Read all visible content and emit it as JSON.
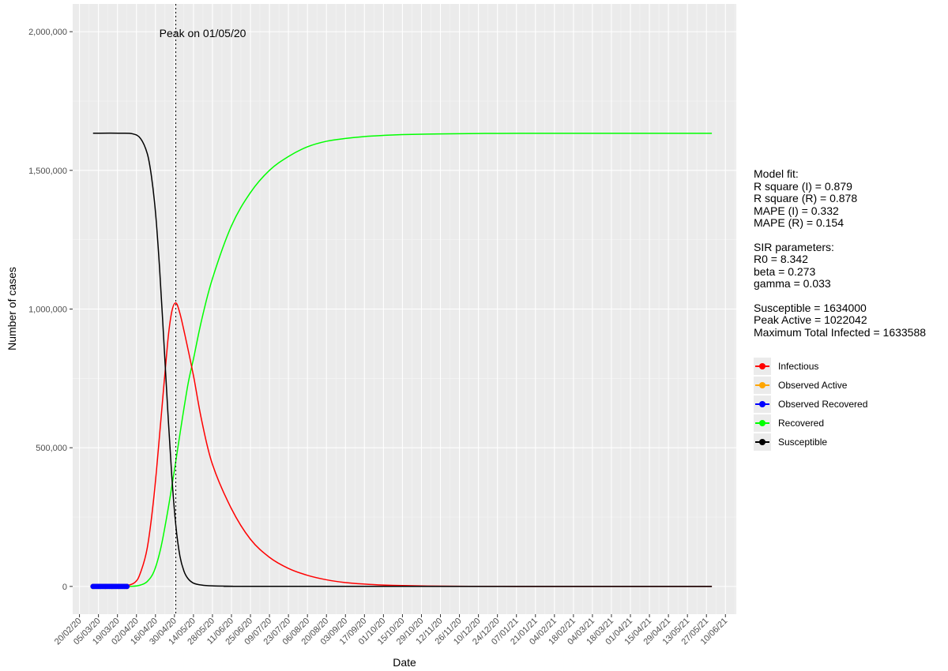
{
  "chart_data": {
    "type": "line",
    "title": "",
    "xlabel": "Date",
    "ylabel": "Number of cases",
    "x_range": [
      "2020-02-15",
      "2021-06-18"
    ],
    "ylim": [
      -100000,
      2100000
    ],
    "y_ticks": [
      0,
      500000,
      1000000,
      1500000,
      2000000
    ],
    "y_tick_labels": [
      "0",
      "500,000",
      "1,000,000",
      "1,500,000",
      "2,000,000"
    ],
    "x_ticks": [
      "2020-02-20",
      "2020-03-05",
      "2020-03-19",
      "2020-04-02",
      "2020-04-16",
      "2020-04-30",
      "2020-05-14",
      "2020-05-28",
      "2020-06-11",
      "2020-06-25",
      "2020-07-09",
      "2020-07-23",
      "2020-08-06",
      "2020-08-20",
      "2020-09-03",
      "2020-09-17",
      "2020-10-01",
      "2020-10-15",
      "2020-10-29",
      "2020-11-12",
      "2020-11-26",
      "2020-12-10",
      "2020-12-24",
      "2021-01-07",
      "2021-01-21",
      "2021-02-04",
      "2021-02-18",
      "2021-03-04",
      "2021-03-18",
      "2021-04-01",
      "2021-04-15",
      "2021-04-29",
      "2021-05-13",
      "2021-05-27",
      "2021-06-10"
    ],
    "x_tick_labels": [
      "20/02/20",
      "05/03/20",
      "19/03/20",
      "02/04/20",
      "16/04/20",
      "30/04/20",
      "14/05/20",
      "28/05/20",
      "11/06/20",
      "25/06/20",
      "09/07/20",
      "23/07/20",
      "06/08/20",
      "20/08/20",
      "03/09/20",
      "17/09/20",
      "01/10/20",
      "15/10/20",
      "29/10/20",
      "12/11/20",
      "26/11/20",
      "10/12/20",
      "24/12/20",
      "07/01/21",
      "21/01/21",
      "04/02/21",
      "18/02/21",
      "04/03/21",
      "18/03/21",
      "01/04/21",
      "15/04/21",
      "29/04/21",
      "13/05/21",
      "27/05/21",
      "10/06/21"
    ],
    "series": [
      {
        "name": "Infectious",
        "color": "#ff0000",
        "x": [
          "2020-03-01",
          "2020-03-15",
          "2020-03-25",
          "2020-04-01",
          "2020-04-05",
          "2020-04-10",
          "2020-04-15",
          "2020-04-20",
          "2020-04-25",
          "2020-04-28",
          "2020-05-01",
          "2020-05-04",
          "2020-05-08",
          "2020-05-14",
          "2020-05-20",
          "2020-05-28",
          "2020-06-11",
          "2020-06-25",
          "2020-07-09",
          "2020-07-23",
          "2020-08-06",
          "2020-08-20",
          "2020-09-03",
          "2020-09-17",
          "2020-10-01",
          "2020-10-15",
          "2020-11-12",
          "2020-12-10",
          "2021-01-07",
          "2021-05-31"
        ],
        "y": [
          0,
          0,
          2000,
          15000,
          50000,
          140000,
          330000,
          600000,
          880000,
          990000,
          1022042,
          985000,
          900000,
          760000,
          600000,
          440000,
          280000,
          170000,
          105000,
          65000,
          40000,
          24000,
          14000,
          8500,
          5000,
          3000,
          1000,
          400,
          100,
          0
        ]
      },
      {
        "name": "Recovered",
        "color": "#00ff00",
        "x": [
          "2020-03-01",
          "2020-03-20",
          "2020-03-30",
          "2020-04-05",
          "2020-04-10",
          "2020-04-15",
          "2020-04-20",
          "2020-04-25",
          "2020-04-30",
          "2020-05-05",
          "2020-05-10",
          "2020-05-14",
          "2020-05-20",
          "2020-05-28",
          "2020-06-11",
          "2020-06-25",
          "2020-07-09",
          "2020-07-23",
          "2020-08-06",
          "2020-08-20",
          "2020-09-03",
          "2020-09-17",
          "2020-10-01",
          "2020-10-15",
          "2020-11-12",
          "2020-12-10",
          "2021-01-07",
          "2021-05-31"
        ],
        "y": [
          0,
          0,
          500,
          5000,
          18000,
          55000,
          140000,
          270000,
          420000,
          580000,
          730000,
          820000,
          960000,
          1110000,
          1300000,
          1420000,
          1500000,
          1550000,
          1585000,
          1605000,
          1615000,
          1622000,
          1626000,
          1629000,
          1631500,
          1633000,
          1633500,
          1633588
        ]
      },
      {
        "name": "Susceptible",
        "color": "#000000",
        "x": [
          "2020-03-01",
          "2020-03-20",
          "2020-03-30",
          "2020-04-05",
          "2020-04-10",
          "2020-04-13",
          "2020-04-16",
          "2020-04-19",
          "2020-04-22",
          "2020-04-25",
          "2020-04-28",
          "2020-05-01",
          "2020-05-04",
          "2020-05-07",
          "2020-05-10",
          "2020-05-14",
          "2020-05-20",
          "2020-05-28",
          "2020-06-11",
          "2020-07-09",
          "2021-05-31"
        ],
        "y": [
          1634000,
          1634000,
          1632000,
          1615000,
          1560000,
          1480000,
          1350000,
          1150000,
          900000,
          640000,
          400000,
          220000,
          110000,
          55000,
          28000,
          12000,
          5000,
          2000,
          800,
          300,
          0
        ]
      },
      {
        "name": "Observed Active",
        "color": "#ffa500",
        "x": [
          "2020-03-01",
          "2020-03-05",
          "2020-03-10",
          "2020-03-15",
          "2020-03-20",
          "2020-03-26"
        ],
        "y": [
          0,
          0,
          0,
          0,
          0,
          0
        ]
      },
      {
        "name": "Observed Recovered",
        "color": "#0000ff",
        "x": [
          "2020-03-01",
          "2020-03-02",
          "2020-03-03",
          "2020-03-04",
          "2020-03-05",
          "2020-03-06",
          "2020-03-07",
          "2020-03-08",
          "2020-03-09",
          "2020-03-10",
          "2020-03-11",
          "2020-03-12",
          "2020-03-13",
          "2020-03-14",
          "2020-03-15",
          "2020-03-16",
          "2020-03-17",
          "2020-03-18",
          "2020-03-19",
          "2020-03-20",
          "2020-03-21",
          "2020-03-22",
          "2020-03-23",
          "2020-03-24",
          "2020-03-25",
          "2020-03-26"
        ],
        "y": [
          0,
          0,
          0,
          0,
          0,
          0,
          0,
          0,
          0,
          0,
          0,
          0,
          0,
          0,
          0,
          0,
          0,
          0,
          0,
          0,
          0,
          0,
          0,
          0,
          0,
          0
        ]
      }
    ],
    "peak_date": "2020-05-01",
    "annotation": "Peak on 01/05/20",
    "grid": true,
    "legend_position": "right",
    "legend": [
      {
        "name": "Infectious",
        "color": "#ff0000",
        "kind": "line"
      },
      {
        "name": "Observed Active",
        "color": "#ffa500",
        "kind": "point"
      },
      {
        "name": "Observed Recovered",
        "color": "#0000ff",
        "kind": "point"
      },
      {
        "name": "Recovered",
        "color": "#00ff00",
        "kind": "line"
      },
      {
        "name": "Susceptible",
        "color": "#000000",
        "kind": "line"
      }
    ]
  },
  "info": {
    "model_fit_title": "Model fit:",
    "r_square_i": "R square (I) = 0.879",
    "r_square_r": "R square (R) = 0.878",
    "mape_i": "MAPE (I) = 0.332",
    "mape_r": "MAPE (R) = 0.154",
    "sir_title": "SIR parameters:",
    "r0": "R0 = 8.342",
    "beta": "beta = 0.273",
    "gamma": "gamma = 0.033",
    "susceptible": "Susceptible = 1634000",
    "peak_active": "Peak Active = 1022042",
    "max_total_infected": "Maximum Total Infected = 1633588"
  }
}
